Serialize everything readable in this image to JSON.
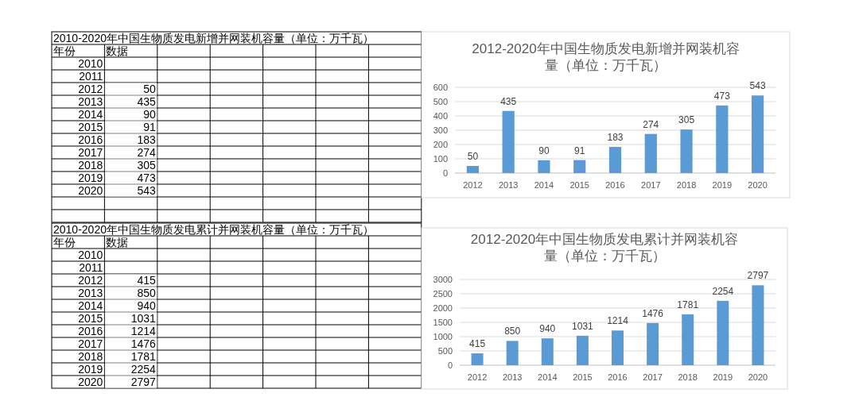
{
  "chart_data": [
    {
      "type": "heatmap",
      "title": "2010-2020年中国生物质发电新增并网装机容量（单位：万千瓦）",
      "ylabel": "年份",
      "categories": [
        "数据"
      ],
      "y_categories": [
        "2010",
        "2011",
        "2012",
        "2013",
        "2014",
        "2015",
        "2016",
        "2017",
        "2018",
        "2019",
        "2020"
      ],
      "cells": [
        [
          null
        ],
        [
          null
        ],
        [
          50
        ],
        [
          435
        ],
        [
          90
        ],
        [
          91
        ],
        [
          183
        ],
        [
          274
        ],
        [
          305
        ],
        [
          473
        ],
        [
          543
        ]
      ],
      "data_labels": true
    },
    {
      "type": "bar",
      "title": "2012-2020年中国生物质发电新增并网装机容量（单位：万千瓦）",
      "categories": [
        "2012",
        "2013",
        "2014",
        "2015",
        "2016",
        "2017",
        "2018",
        "2019",
        "2020"
      ],
      "values": [
        50,
        435,
        90,
        91,
        183,
        274,
        305,
        473,
        543
      ],
      "color": "#5b9bd5",
      "ylim": [
        0,
        600
      ],
      "yticks": [
        0,
        100,
        200,
        300,
        400,
        500,
        600
      ],
      "grid": "y",
      "data_labels": true
    },
    {
      "type": "heatmap",
      "title": "2010-2020年中国生物质发电累计并网装机容量（单位：万千瓦）",
      "ylabel": "年份",
      "categories": [
        "数据"
      ],
      "y_categories": [
        "2010",
        "2011",
        "2012",
        "2013",
        "2014",
        "2015",
        "2016",
        "2017",
        "2018",
        "2019",
        "2020"
      ],
      "cells": [
        [
          null
        ],
        [
          null
        ],
        [
          415
        ],
        [
          850
        ],
        [
          940
        ],
        [
          1031
        ],
        [
          1214
        ],
        [
          1476
        ],
        [
          1781
        ],
        [
          2254
        ],
        [
          2797
        ]
      ],
      "data_labels": true
    },
    {
      "type": "bar",
      "title": "2012-2020年中国生物质发电累计并网装机容量（单位：万千瓦）",
      "categories": [
        "2012",
        "2013",
        "2014",
        "2015",
        "2016",
        "2017",
        "2018",
        "2019",
        "2020"
      ],
      "values": [
        415,
        850,
        940,
        1031,
        1214,
        1476,
        1781,
        2254,
        2797
      ],
      "color": "#5b9bd5",
      "ylim": [
        0,
        3000
      ],
      "yticks": [
        0,
        500,
        1000,
        1500,
        2000,
        2500,
        3000
      ],
      "grid": "y",
      "data_labels": true
    }
  ]
}
